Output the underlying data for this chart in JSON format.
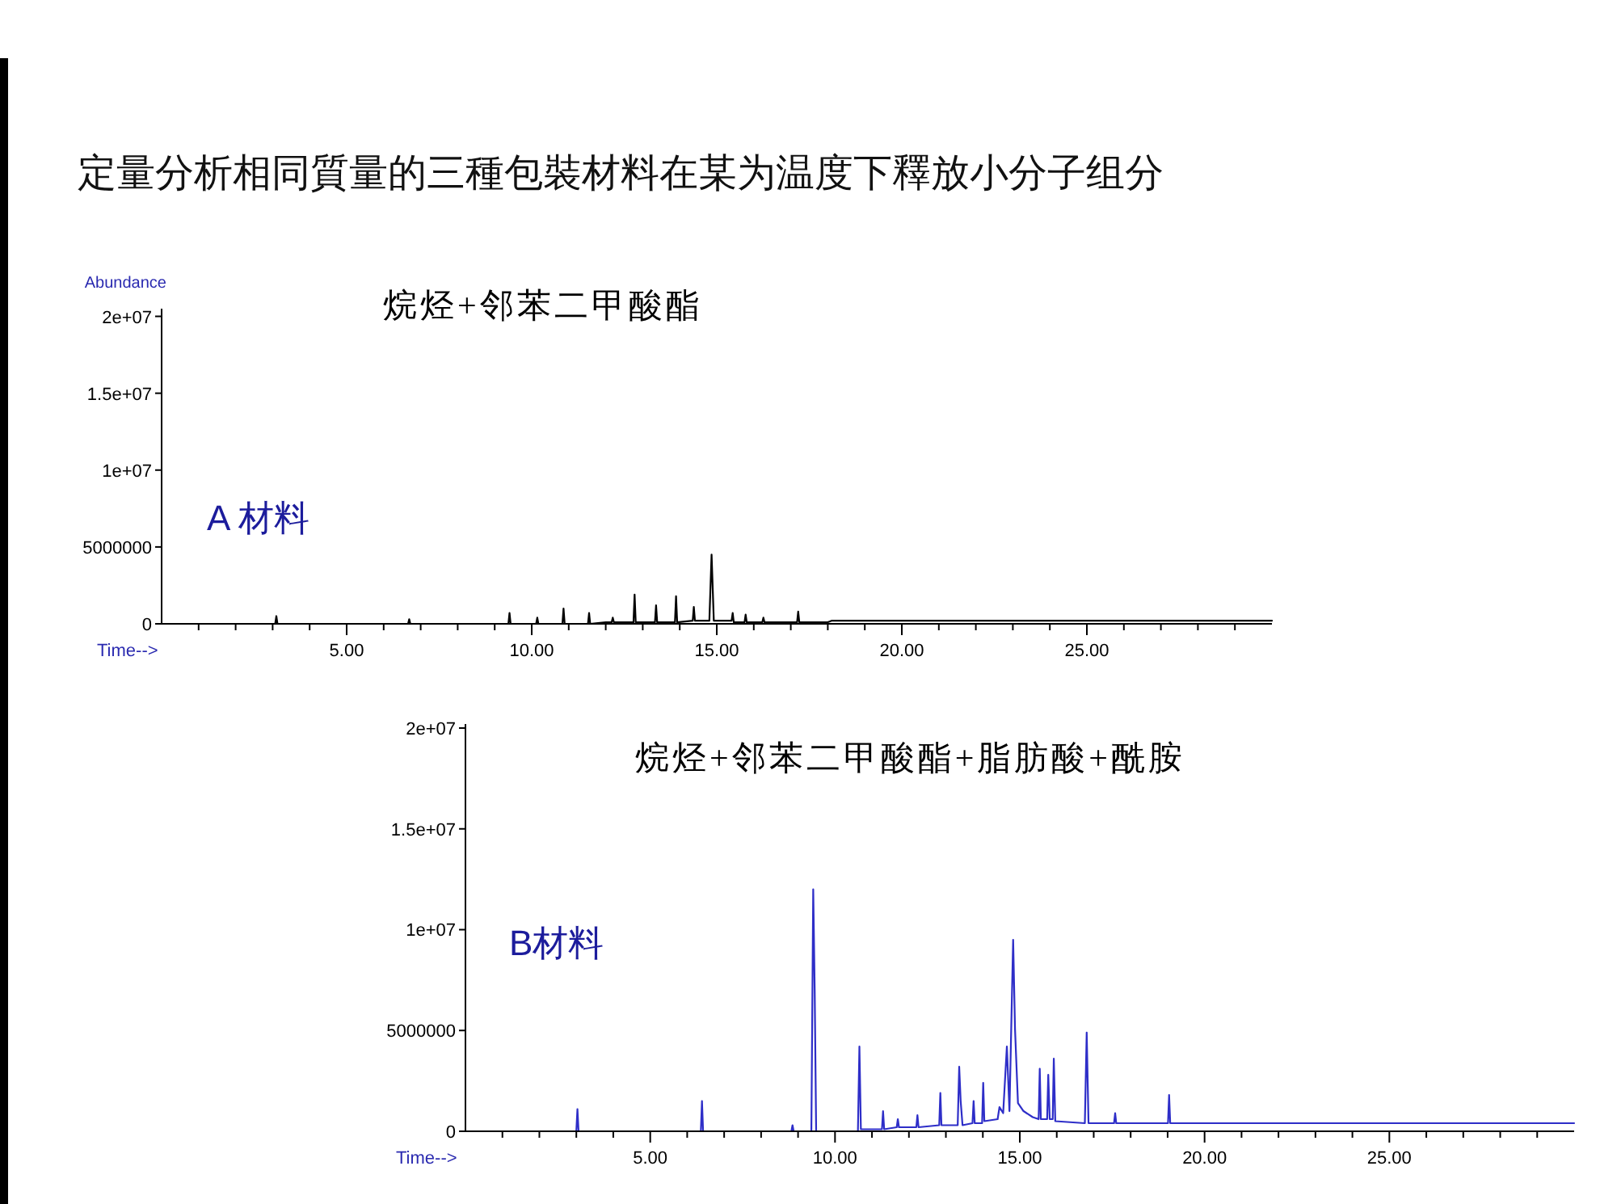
{
  "chart_data": [
    {
      "type": "line",
      "title": "定量分析相同質量的三種包裝材料在某为温度下釋放小分子组分",
      "subtitle": "烷烃+邻苯二甲酸酯",
      "ylabel": "Abundance",
      "xlabel": "Time-->",
      "annotations": [
        "A 材料"
      ],
      "color": "#000000",
      "x": [
        0.0,
        3.07,
        3.1,
        3.13,
        6.66,
        6.69,
        6.72,
        9.37,
        9.4,
        9.43,
        10.12,
        10.15,
        10.18,
        10.83,
        10.86,
        10.89,
        11.52,
        11.55,
        11.58,
        12.0,
        12.16,
        12.19,
        12.22,
        12.75,
        12.78,
        12.81,
        13.33,
        13.36,
        13.39,
        13.87,
        13.9,
        13.93,
        14.35,
        14.38,
        14.41,
        14.8,
        14.86,
        14.92,
        15.4,
        15.43,
        15.46,
        15.75,
        15.78,
        15.81,
        16.23,
        16.26,
        16.29,
        17.17,
        17.2,
        17.23,
        18.0,
        18.1,
        30.0
      ],
      "values": [
        0,
        0,
        500000,
        0,
        0,
        300000,
        0,
        0,
        700000,
        0,
        0,
        400000,
        0,
        0,
        1000000,
        0,
        0,
        700000,
        0,
        100000,
        100000,
        400000,
        100000,
        100000,
        1900000,
        100000,
        100000,
        1200000,
        100000,
        100000,
        1800000,
        100000,
        200000,
        1100000,
        200000,
        200000,
        4500000,
        200000,
        200000,
        700000,
        100000,
        100000,
        600000,
        100000,
        100000,
        400000,
        100000,
        100000,
        800000,
        100000,
        100000,
        200000,
        200000
      ],
      "xlim": [
        0,
        30
      ],
      "ylim": [
        0,
        20500000
      ],
      "xticks": [
        {
          "value": 1,
          "label": null
        },
        {
          "value": 2,
          "label": null
        },
        {
          "value": 3,
          "label": null
        },
        {
          "value": 4,
          "label": null
        },
        {
          "value": 5,
          "label": "5.00"
        },
        {
          "value": 6,
          "label": null
        },
        {
          "value": 7,
          "label": null
        },
        {
          "value": 8,
          "label": null
        },
        {
          "value": 9,
          "label": null
        },
        {
          "value": 10,
          "label": "10.00"
        },
        {
          "value": 11,
          "label": null
        },
        {
          "value": 12,
          "label": null
        },
        {
          "value": 13,
          "label": null
        },
        {
          "value": 14,
          "label": null
        },
        {
          "value": 15,
          "label": "15.00"
        },
        {
          "value": 16,
          "label": null
        },
        {
          "value": 17,
          "label": null
        },
        {
          "value": 18,
          "label": null
        },
        {
          "value": 19,
          "label": null
        },
        {
          "value": 20,
          "label": "20.00"
        },
        {
          "value": 21,
          "label": null
        },
        {
          "value": 22,
          "label": null
        },
        {
          "value": 23,
          "label": null
        },
        {
          "value": 24,
          "label": null
        },
        {
          "value": 25,
          "label": "25.00"
        },
        {
          "value": 26,
          "label": null
        },
        {
          "value": 27,
          "label": null
        },
        {
          "value": 28,
          "label": null
        },
        {
          "value": 29,
          "label": null
        }
      ],
      "yticks": [
        {
          "value": 0,
          "label": "0"
        },
        5000000,
        {
          "value": 10000000,
          "label": "1e+07"
        },
        {
          "value": 15000000,
          "label": "1.5e+07"
        },
        {
          "value": 20000000,
          "label": "2e+07"
        }
      ]
    },
    {
      "type": "line",
      "subtitle": "烷烃+邻苯二甲酸酯+脂肪酸+酰胺",
      "xlabel": "Time-->",
      "annotations": [
        "B材料"
      ],
      "color": "#2e2ec8",
      "x": [
        0.0,
        3.0,
        3.03,
        3.06,
        6.37,
        6.4,
        6.43,
        8.82,
        8.85,
        8.88,
        9.36,
        9.41,
        9.45,
        9.49,
        10.62,
        10.66,
        10.7,
        11.27,
        11.3,
        11.33,
        11.67,
        11.7,
        11.73,
        12.2,
        12.23,
        12.26,
        12.82,
        12.85,
        12.88,
        13.32,
        13.36,
        13.4,
        13.45,
        13.72,
        13.75,
        13.78,
        13.98,
        14.01,
        14.04,
        14.4,
        14.45,
        14.55,
        14.65,
        14.72,
        14.82,
        14.87,
        14.95,
        15.1,
        15.35,
        15.51,
        15.54,
        15.57,
        15.74,
        15.77,
        15.81,
        15.89,
        15.92,
        15.96,
        16.76,
        16.81,
        16.86,
        17.55,
        17.58,
        17.61,
        19.01,
        19.04,
        19.07,
        30.0
      ],
      "values": [
        0,
        0,
        1100000,
        0,
        0,
        1500000,
        0,
        0,
        300000,
        0,
        0,
        12000000,
        7000000,
        0,
        0,
        4200000,
        100000,
        100000,
        1000000,
        100000,
        200000,
        600000,
        200000,
        200000,
        800000,
        200000,
        300000,
        1900000,
        300000,
        300000,
        3200000,
        1500000,
        300000,
        400000,
        1500000,
        400000,
        400000,
        2400000,
        500000,
        600000,
        1200000,
        900000,
        4200000,
        1000000,
        9500000,
        5100000,
        1400000,
        1000000,
        700000,
        600000,
        3100000,
        600000,
        600000,
        2800000,
        600000,
        600000,
        3600000,
        500000,
        400000,
        4900000,
        400000,
        400000,
        900000,
        400000,
        400000,
        1800000,
        400000,
        400000
      ],
      "xlim": [
        0,
        30
      ],
      "ylim": [
        0,
        20200000
      ],
      "xticks": [
        {
          "value": 1,
          "label": null
        },
        {
          "value": 2,
          "label": null
        },
        {
          "value": 3,
          "label": null
        },
        {
          "value": 4,
          "label": null
        },
        {
          "value": 5,
          "label": "5.00"
        },
        {
          "value": 6,
          "label": null
        },
        {
          "value": 7,
          "label": null
        },
        {
          "value": 8,
          "label": null
        },
        {
          "value": 9,
          "label": null
        },
        {
          "value": 10,
          "label": "10.00"
        },
        {
          "value": 11,
          "label": null
        },
        {
          "value": 12,
          "label": null
        },
        {
          "value": 13,
          "label": null
        },
        {
          "value": 14,
          "label": null
        },
        {
          "value": 15,
          "label": "15.00"
        },
        {
          "value": 16,
          "label": null
        },
        {
          "value": 17,
          "label": null
        },
        {
          "value": 18,
          "label": null
        },
        {
          "value": 19,
          "label": null
        },
        {
          "value": 20,
          "label": "20.00"
        },
        {
          "value": 21,
          "label": null
        },
        {
          "value": 22,
          "label": null
        },
        {
          "value": 23,
          "label": null
        },
        {
          "value": 24,
          "label": null
        },
        {
          "value": 25,
          "label": "25.00"
        },
        {
          "value": 26,
          "label": null
        },
        {
          "value": 27,
          "label": null
        },
        {
          "value": 28,
          "label": null
        },
        {
          "value": 29,
          "label": null
        }
      ],
      "yticks": [
        {
          "value": 0,
          "label": "0"
        },
        5000000,
        {
          "value": 10000000,
          "label": "1e+07"
        },
        {
          "value": 15000000,
          "label": "1.5e+07"
        },
        {
          "value": 20000000,
          "label": "2e+07"
        }
      ]
    }
  ]
}
